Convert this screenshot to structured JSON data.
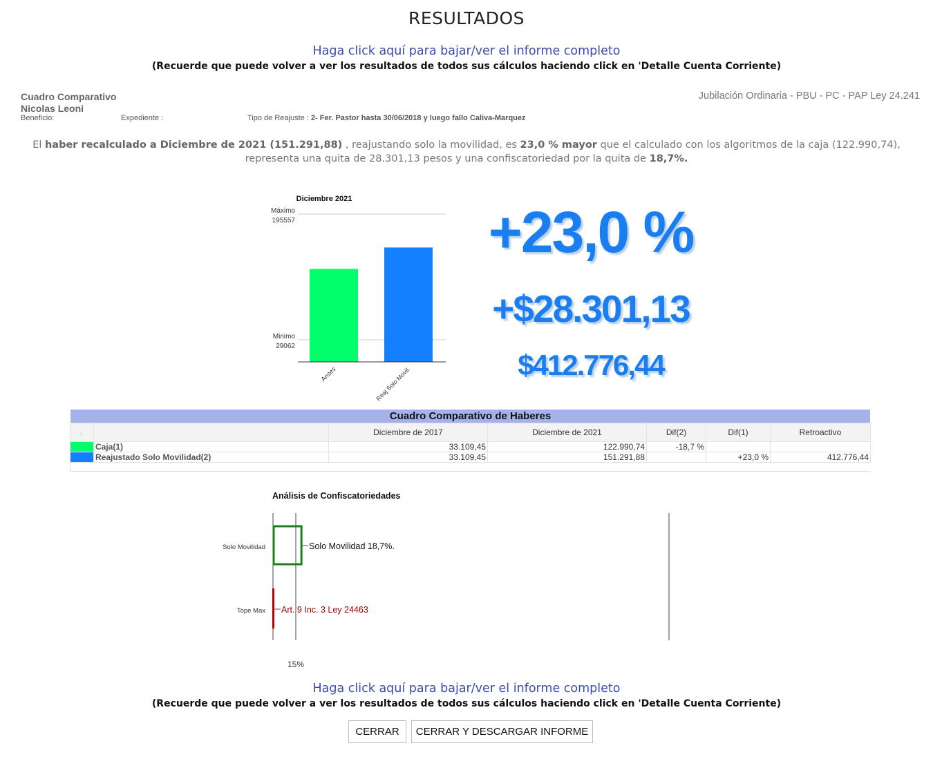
{
  "page": {
    "title": "RESULTADOS",
    "download_link": "Haga click aquí para bajar/ver el informe completo",
    "reminder": "(Recuerde que puede volver a ver los resultados de todos sus cálculos haciendo click en 'Detalle Cuenta Corriente)"
  },
  "header": {
    "section": "Cuadro Comparativo",
    "name": "Nicolas Leoni",
    "benefit_label": "Beneficio:",
    "file_label": "Expediente :",
    "readjust_label": "Tipo de Reajuste :",
    "readjust_value": "2- Fer. Pastor hasta 30/06/2018 y luego fallo Caliva-Marquez",
    "benefit_type": "Jubilación Ordinaria - PBU - PC - PAP Ley 24.241"
  },
  "summary": {
    "p1": "El ",
    "b1": "haber recalculado a Diciembre de 2021 (151.291,88)",
    "p2": " , reajustando solo la movilidad, es ",
    "b2": "23,0 % mayor",
    "p3": " que el calculado con los algoritmos de la caja (122.990,74),",
    "p4": "representa una quita de 28.301,13 pesos y una confiscatoriedad por la quita de ",
    "b3": "18,7%."
  },
  "stats": {
    "percent": "+23,0 %",
    "difference": "+$28.301,13",
    "retro": "$412.776,44"
  },
  "chart_data": [
    {
      "type": "bar",
      "title": "Diciembre 2021",
      "categories": [
        "Anses",
        "Reaj Solo Movil."
      ],
      "values": [
        122990.74,
        151291.88
      ],
      "colors": [
        "#00ff6a",
        "#1580ff"
      ],
      "ylim": [
        0,
        195557
      ],
      "reference_lines": [
        {
          "label": "Máximo",
          "value": 195557,
          "value_label": "195557"
        },
        {
          "label": "Minimo",
          "value": 29062,
          "value_label": "29062"
        }
      ]
    },
    {
      "type": "bar",
      "title": "Análisis de Confiscatoriedades",
      "categories": [
        "Solo Movilidad",
        "Tope Max"
      ],
      "values": [
        18.7,
        0
      ],
      "annotations": [
        "Solo Movilidad 18,7%.",
        "Art. 9 Inc. 3 Ley 24463"
      ],
      "colors": [
        "#1e7d1e",
        "#c00000"
      ],
      "reference_value": 15,
      "reference_label": "15%"
    }
  ],
  "table": {
    "title": "Cuadro Comparativo de Haberes",
    "headers": [
      ".",
      "",
      "Diciembre de 2017",
      "Diciembre de 2021",
      "Dif(2)",
      "Dif(1)",
      "Retroactivo"
    ],
    "rows": [
      {
        "color": "#00ff6a",
        "label": "Caja(1)",
        "dec2017": "33.109,45",
        "dec2021": "122.990,74",
        "dif2": "-18,7 %",
        "dif1": "",
        "retro": ""
      },
      {
        "color": "#1580ff",
        "label": "Reajustado Solo Movilidad(2)",
        "dec2017": "33.109,45",
        "dec2021": "151.291,88",
        "dif2": "",
        "dif1": "+23,0 %",
        "retro": "412.776,44"
      }
    ]
  },
  "buttons": {
    "close": "CERRAR",
    "close_download": "CERRAR Y DESCARGAR INFORME"
  }
}
